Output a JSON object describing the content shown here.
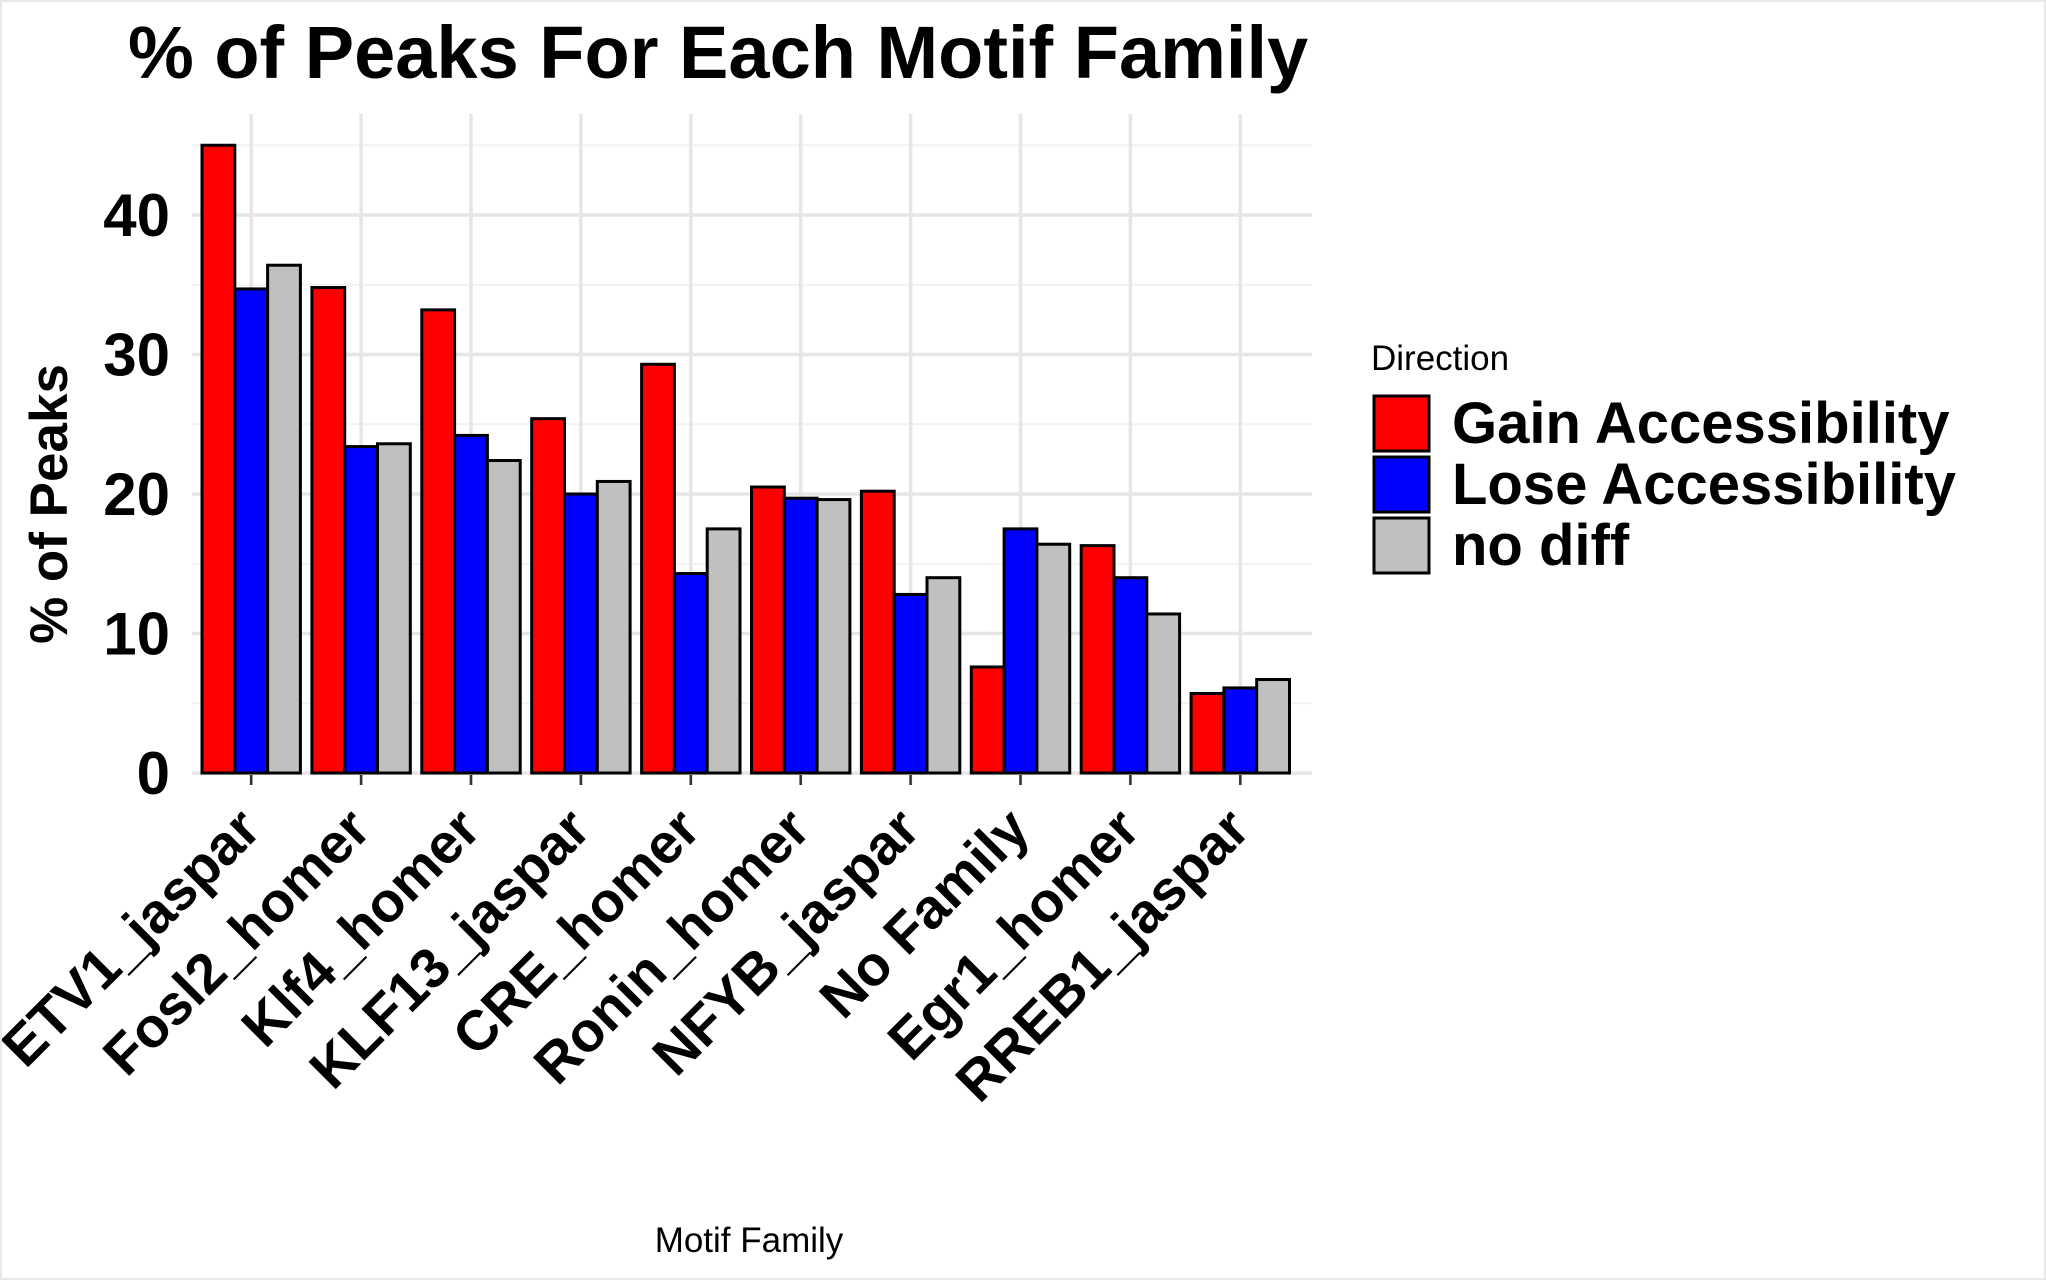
{
  "chart_data": {
    "type": "bar",
    "title": "% of Peaks For Each Motif Family",
    "xlabel": "Motif Family",
    "ylabel": "% of Peaks",
    "ylim": [
      0,
      46
    ],
    "yticks": [
      0,
      10,
      20,
      30,
      40
    ],
    "grid": true,
    "legend": {
      "title": "Direction",
      "position": "right"
    },
    "categories": [
      "ETV1_jaspar",
      "Fosl2_homer",
      "Klf4_homer",
      "KLF13_jaspar",
      "CRE_homer",
      "Ronin_homer",
      "NFYB_jaspar",
      "No Family",
      "Egr1_homer",
      "RREB1_jaspar"
    ],
    "series": [
      {
        "name": "Gain Accessibility",
        "color": "#ff0000",
        "values": [
          45.0,
          34.8,
          33.2,
          25.4,
          29.3,
          20.5,
          20.2,
          7.6,
          16.3,
          5.7
        ]
      },
      {
        "name": "Lose Accessibility",
        "color": "#0000ff",
        "values": [
          34.7,
          23.4,
          24.2,
          20.0,
          14.3,
          19.7,
          12.8,
          17.5,
          14.0,
          6.1
        ]
      },
      {
        "name": "no diff",
        "color": "#c0c0c0",
        "values": [
          36.4,
          23.6,
          22.4,
          20.9,
          17.5,
          19.6,
          14.0,
          16.4,
          11.4,
          6.7
        ]
      }
    ]
  }
}
